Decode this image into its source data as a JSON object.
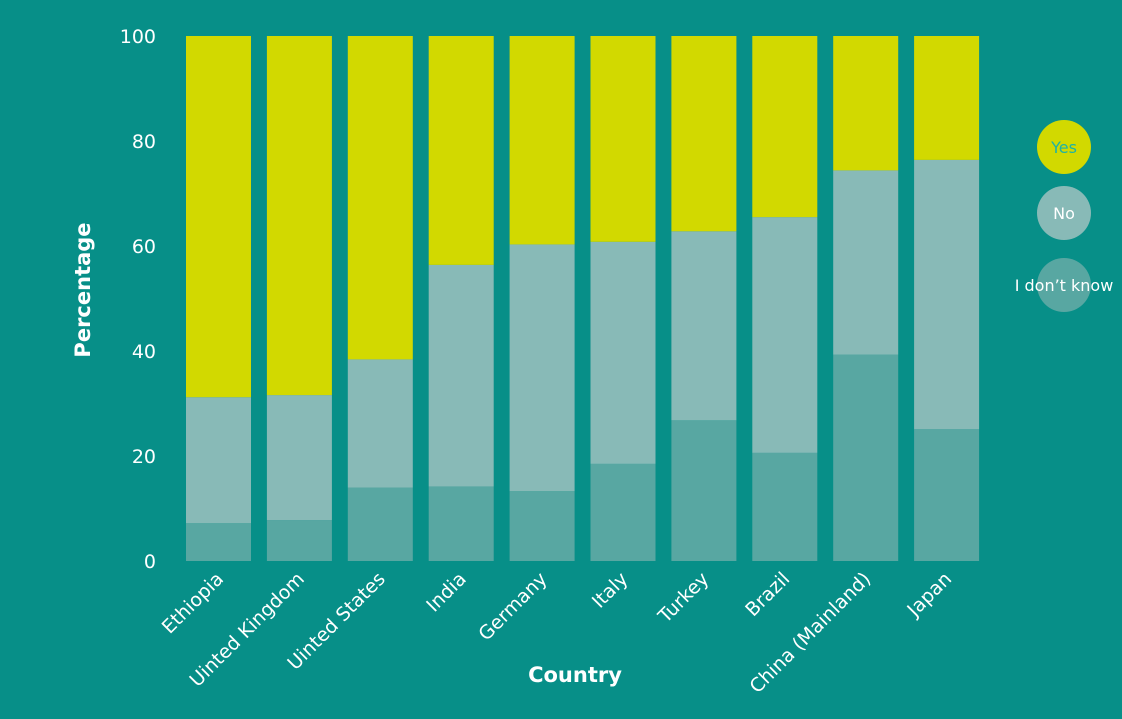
{
  "chart_data": {
    "type": "bar",
    "stacked": true,
    "orientation": "vertical",
    "xlabel": "Country",
    "ylabel": "Percentage",
    "ylim": [
      0,
      100
    ],
    "yticks": [
      0,
      20,
      40,
      60,
      80,
      100
    ],
    "grid": false,
    "legend_position": "right",
    "categories": [
      "Ethiopia",
      "Uinted Kingdom",
      "Uinted States",
      "India",
      "Germany",
      "Italy",
      "Turkey",
      "Brazil",
      "China (Mainland)",
      "Japan"
    ],
    "series": [
      {
        "name": "I don’t know",
        "color": "#58a7a2",
        "values": [
          7.2,
          7.8,
          14.0,
          14.2,
          13.3,
          18.5,
          26.8,
          20.6,
          39.3,
          25.1
        ]
      },
      {
        "name": "No",
        "color": "#88bab7",
        "values": [
          24.0,
          23.8,
          24.4,
          42.2,
          47.0,
          42.3,
          36.0,
          44.9,
          35.1,
          51.3
        ]
      },
      {
        "name": "Yes",
        "color": "#d2d900",
        "values": [
          68.8,
          68.4,
          61.6,
          43.6,
          39.7,
          39.2,
          37.2,
          34.5,
          25.6,
          23.6
        ]
      }
    ],
    "legend": {
      "items": [
        {
          "label": "Yes",
          "color": "#d2d900",
          "text_color": "#1eb3a6"
        },
        {
          "label": "No",
          "color": "#88bab7",
          "text_color": "#ffffff"
        },
        {
          "label": "I don’t know",
          "color": "#58a7a2",
          "text_color": "#ffffff"
        }
      ]
    },
    "colors": {
      "background": "#078f88",
      "text": "#ffffff"
    }
  }
}
